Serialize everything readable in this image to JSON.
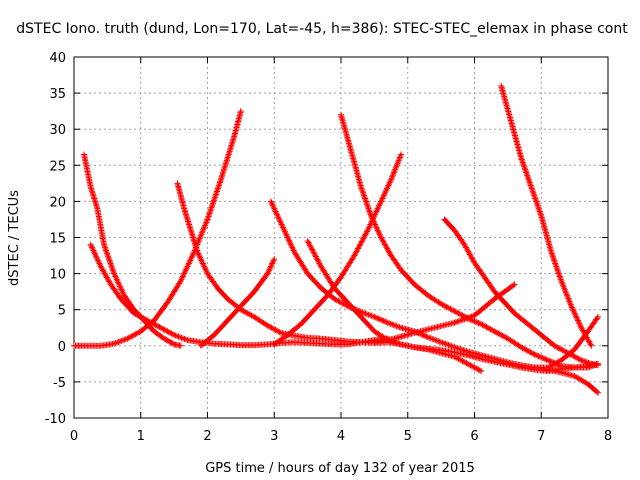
{
  "chart_data": {
    "type": "scatter",
    "title": "dSTEC Iono. truth (dund, Lon=170, Lat=-45, h=386): STEC-STEC_elemax in phase cont",
    "xlabel": "GPS time / hours of day 132 of year 2015",
    "ylabel": "dSTEC  / TECUs",
    "xlim": [
      0,
      8
    ],
    "ylim": [
      -10,
      40
    ],
    "xticks": [
      0,
      1,
      2,
      3,
      4,
      5,
      6,
      7,
      8
    ],
    "yticks": [
      -10,
      -5,
      0,
      5,
      10,
      15,
      20,
      25,
      30,
      35,
      40
    ],
    "grid": true,
    "marker": "+",
    "color": "#ff0000",
    "series": [
      {
        "x": [
          0.15,
          0.25,
          0.35,
          0.45,
          0.6,
          0.75,
          0.9,
          1.05,
          1.2,
          1.35,
          1.5,
          1.6
        ],
        "y": [
          26.5,
          22,
          19,
          14,
          10,
          7,
          5,
          3.5,
          2,
          1,
          0.2,
          0
        ]
      },
      {
        "x": [
          0.25,
          0.4,
          0.55,
          0.7,
          0.9,
          1.1,
          1.3,
          1.5,
          1.7,
          1.9,
          2.1,
          2.3,
          2.5,
          2.7,
          2.9,
          3.1,
          3.3,
          3.5,
          3.7,
          3.9,
          4.1,
          4.3,
          4.5,
          4.7
        ],
        "y": [
          14,
          11,
          8.5,
          6.5,
          4.5,
          3.5,
          2.5,
          1.5,
          0.8,
          0.5,
          0.3,
          0.2,
          0.1,
          0.1,
          0.2,
          0.4,
          0.5,
          0.4,
          0.3,
          0.2,
          0.2,
          0.5,
          0.8,
          1.0
        ]
      },
      {
        "x": [
          0.0,
          0.2,
          0.4,
          0.6,
          0.8,
          1.0,
          1.2,
          1.4,
          1.6,
          1.8,
          2.0,
          2.2,
          2.4,
          2.5
        ],
        "y": [
          0,
          0,
          0,
          0.3,
          1,
          2,
          3.5,
          6,
          9,
          13,
          17.5,
          23,
          29,
          32.5
        ]
      },
      {
        "x": [
          1.55,
          1.65,
          1.75,
          1.85,
          2.0,
          2.15,
          2.3,
          2.5,
          2.7,
          2.9,
          3.1,
          3.3,
          3.5,
          3.7,
          3.9,
          4.1,
          4.3,
          4.5,
          4.7,
          4.9,
          5.1,
          5.3,
          5.5,
          5.7,
          5.9,
          6.1
        ],
        "y": [
          22.5,
          19,
          16,
          13,
          10,
          8,
          6.5,
          5,
          4,
          2.8,
          1.8,
          1.4,
          1.1,
          1.0,
          0.8,
          0.6,
          0.5,
          0.4,
          0.5,
          0.2,
          -0.2,
          -0.5,
          -1.0,
          -1.5,
          -2.5,
          -3.5
        ]
      },
      {
        "x": [
          1.9,
          2.1,
          2.3,
          2.5,
          2.7,
          2.9,
          3.0
        ],
        "y": [
          0,
          1.5,
          3.5,
          5.5,
          7.5,
          10,
          12
        ]
      },
      {
        "x": [
          2.95,
          3.1,
          3.3,
          3.5,
          3.7,
          3.9,
          4.1,
          4.3,
          4.5,
          4.7,
          4.9,
          5.1,
          5.3,
          5.5,
          5.7,
          5.9,
          6.1,
          6.3,
          6.5,
          6.7,
          6.9,
          7.1,
          7.3,
          7.5,
          7.7,
          7.85
        ],
        "y": [
          20,
          17,
          13,
          10,
          8,
          6.5,
          5.5,
          4.7,
          4,
          3.2,
          2.5,
          2,
          1.2,
          0.5,
          -0.2,
          -0.8,
          -1.3,
          -1.8,
          -2.3,
          -2.7,
          -3.0,
          -3.3,
          -3.7,
          -4.2,
          -5.3,
          -6.5
        ]
      },
      {
        "x": [
          3.5,
          3.7,
          3.9,
          4.1,
          4.3,
          4.5,
          4.7,
          4.9,
          5.1,
          5.3,
          5.5,
          5.7,
          5.9,
          6.1,
          6.3,
          6.5,
          6.7,
          6.9,
          7.1,
          7.3,
          7.5,
          7.7,
          7.85
        ],
        "y": [
          14.5,
          11,
          8,
          6,
          4,
          2,
          0.8,
          0.2,
          -0.2,
          -0.4,
          -0.6,
          -0.9,
          -1.3,
          -1.8,
          -2.2,
          -2.6,
          -3.0,
          -3.3,
          -3.5,
          -3.2,
          -3.0,
          -3.0,
          -2.5
        ]
      },
      {
        "x": [
          3.0,
          3.2,
          3.4,
          3.6,
          3.8,
          4.0,
          4.2,
          4.4,
          4.6,
          4.75,
          4.9
        ],
        "y": [
          0.2,
          1.5,
          3,
          5,
          7,
          9.5,
          12.5,
          16,
          20,
          23,
          26.5
        ]
      },
      {
        "x": [
          4.0,
          4.15,
          4.3,
          4.45,
          4.6,
          4.75,
          4.9,
          5.1,
          5.3,
          5.5,
          5.7,
          5.9,
          6.1,
          6.3,
          6.5,
          6.7,
          6.9,
          7.1,
          7.3,
          7.5,
          7.7,
          7.85
        ],
        "y": [
          32,
          27,
          22,
          18,
          15,
          12.5,
          10.5,
          8.5,
          7,
          5.8,
          4.8,
          3.8,
          3.0,
          2.0,
          1.0,
          -0.2,
          -1.2,
          -2.0,
          -2.8,
          -3.0,
          -2.8,
          -2.5
        ]
      },
      {
        "x": [
          4.5,
          4.8,
          5.1,
          5.4,
          5.7,
          6.0,
          6.3,
          6.6
        ],
        "y": [
          0.5,
          1.0,
          1.8,
          2.5,
          3.2,
          4.2,
          6.5,
          8.5
        ]
      },
      {
        "x": [
          5.55,
          5.7,
          5.85,
          6.0,
          6.15,
          6.3,
          6.45,
          6.6,
          6.8,
          7.0,
          7.2,
          7.4,
          7.6,
          7.75,
          7.85
        ],
        "y": [
          17.5,
          16,
          14,
          11.5,
          9.5,
          7.5,
          6,
          4.5,
          3,
          1.5,
          0,
          -1,
          -2,
          -2.5,
          -2.7
        ]
      },
      {
        "x": [
          6.4,
          6.55,
          6.7,
          6.85,
          7.0,
          7.15,
          7.3,
          7.45,
          7.6,
          7.75
        ],
        "y": [
          36,
          31,
          26,
          22,
          18,
          13,
          9,
          5.5,
          2.5,
          0
        ]
      },
      {
        "x": [
          6.9,
          7.1,
          7.3,
          7.5,
          7.7,
          7.85
        ],
        "y": [
          -3,
          -3,
          -2,
          -0.5,
          2,
          4
        ]
      }
    ]
  }
}
